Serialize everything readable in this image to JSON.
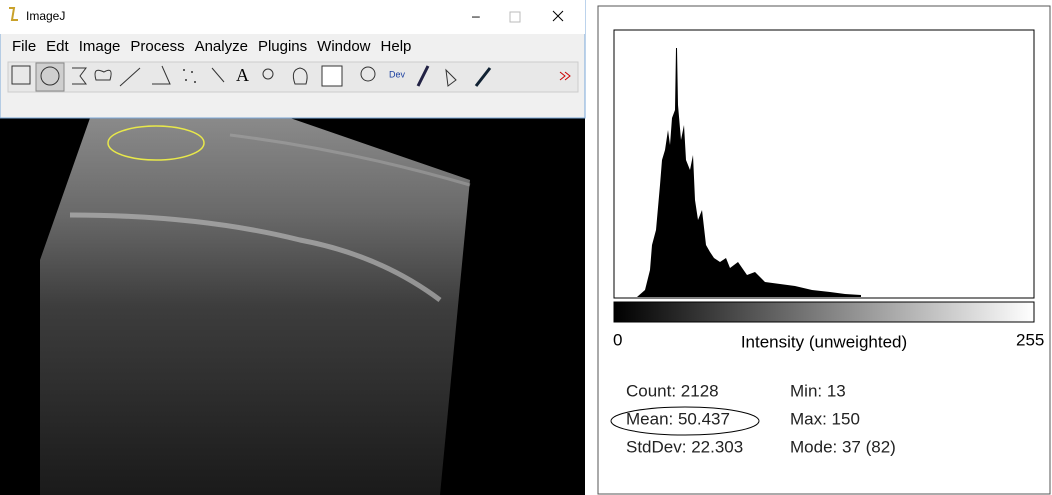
{
  "imagej": {
    "title": "ImageJ",
    "menu": [
      "File",
      "Edt",
      "Image",
      "Process",
      "Analyze",
      "Plugins",
      "Window",
      "Help"
    ],
    "toolbar_text": [
      "A",
      "Dev"
    ]
  },
  "histogram": {
    "axis_min": "0",
    "axis_label": "Intensity (unweighted)",
    "axis_max": "255",
    "stats": [
      [
        "Count: 2128",
        "Min: 13"
      ],
      [
        "Mean: 50.437",
        "Max: 150"
      ],
      [
        "StdDev: 22.303",
        "Mode: 37 (82)"
      ]
    ]
  }
}
